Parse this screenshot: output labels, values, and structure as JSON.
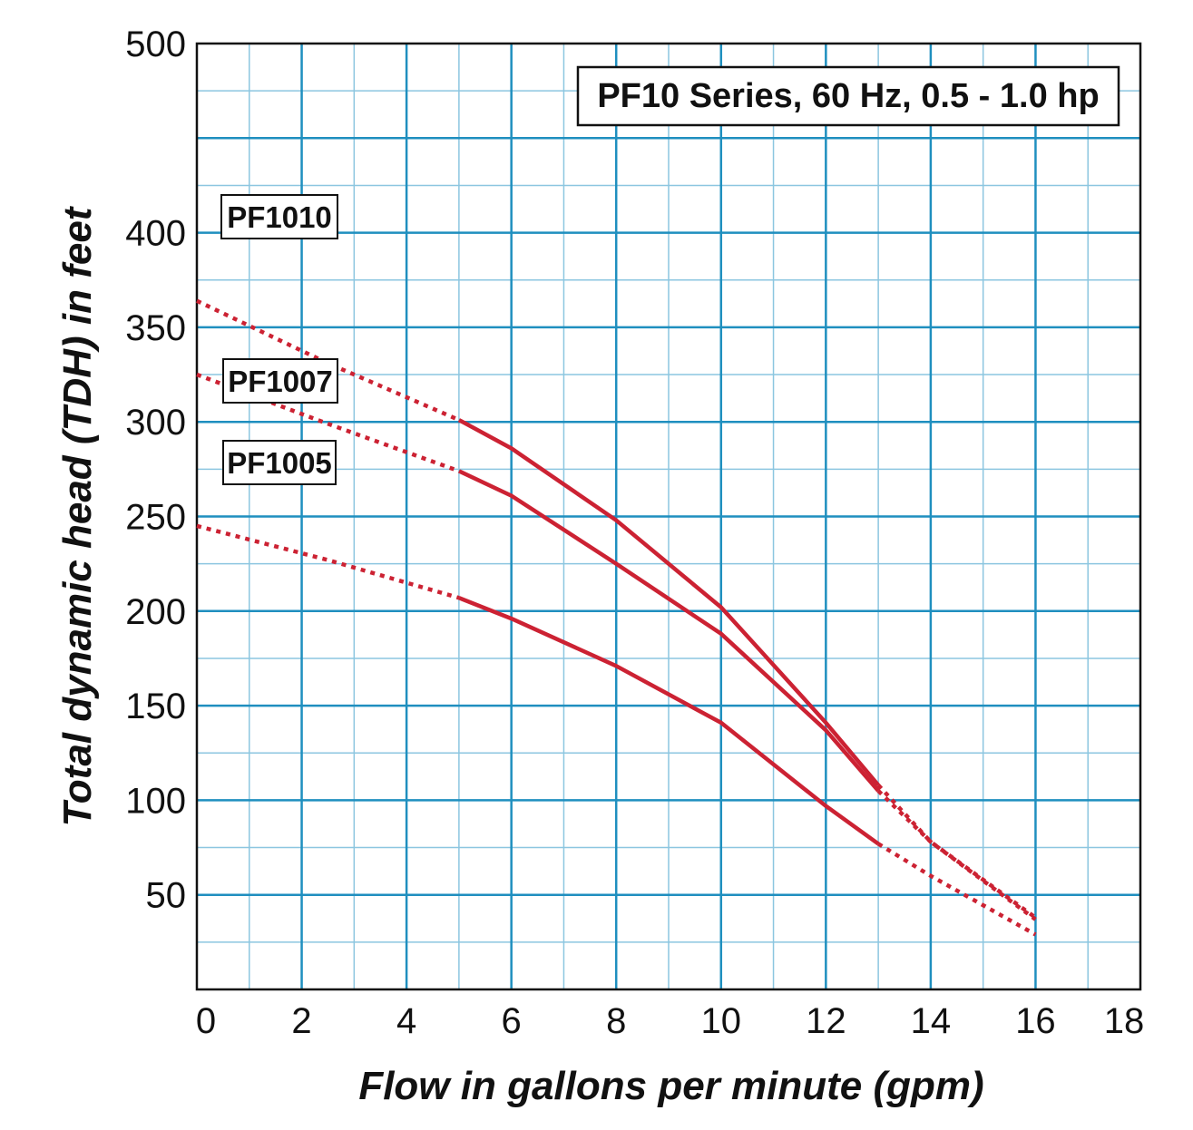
{
  "chart_data": {
    "type": "line",
    "title": "PF10 Series, 60 Hz, 0.5 - 1.0 hp",
    "xlabel": "Flow in gallons per minute (gpm)",
    "ylabel": "Total dynamic head (TDH) in feet",
    "xlim": [
      0,
      18
    ],
    "ylim": [
      0,
      500
    ],
    "x_ticks": [
      "0",
      "2",
      "4",
      "6",
      "8",
      "10",
      "12",
      "14",
      "16",
      "18"
    ],
    "y_ticks": [
      "50",
      "100",
      "150",
      "200",
      "250",
      "300",
      "350",
      "400",
      "500"
    ],
    "grid": true,
    "series": [
      {
        "name": "PF1010",
        "extrapolated_start": [
          [
            0,
            364
          ],
          [
            2.5,
            331
          ],
          [
            5,
            301
          ]
        ],
        "values": [
          [
            5,
            301
          ],
          [
            6,
            286
          ],
          [
            8,
            248
          ],
          [
            10,
            202
          ],
          [
            12,
            141
          ],
          [
            13,
            108
          ]
        ],
        "extrapolated_end": [
          [
            13,
            108
          ],
          [
            14,
            78
          ],
          [
            16,
            38
          ]
        ]
      },
      {
        "name": "PF1007",
        "extrapolated_start": [
          [
            0,
            325
          ],
          [
            2.5,
            299
          ],
          [
            5,
            274
          ]
        ],
        "values": [
          [
            5,
            274
          ],
          [
            6,
            261
          ],
          [
            8,
            225
          ],
          [
            10,
            188
          ],
          [
            12,
            137
          ],
          [
            13,
            105
          ]
        ],
        "extrapolated_end": [
          [
            13,
            105
          ],
          [
            14,
            78
          ],
          [
            16,
            37
          ]
        ]
      },
      {
        "name": "PF1005",
        "extrapolated_start": [
          [
            0,
            245
          ],
          [
            2.5,
            227
          ],
          [
            5,
            207
          ]
        ],
        "values": [
          [
            5,
            207
          ],
          [
            6,
            196
          ],
          [
            8,
            171
          ],
          [
            10,
            141
          ],
          [
            12,
            97
          ],
          [
            13,
            77
          ]
        ],
        "extrapolated_end": [
          [
            13,
            77
          ],
          [
            14,
            60
          ],
          [
            16,
            29
          ]
        ]
      }
    ],
    "series_color": "#cc2233",
    "grid_color": "#1f8fbf",
    "grid_minor_color": "#8cc6e0"
  }
}
